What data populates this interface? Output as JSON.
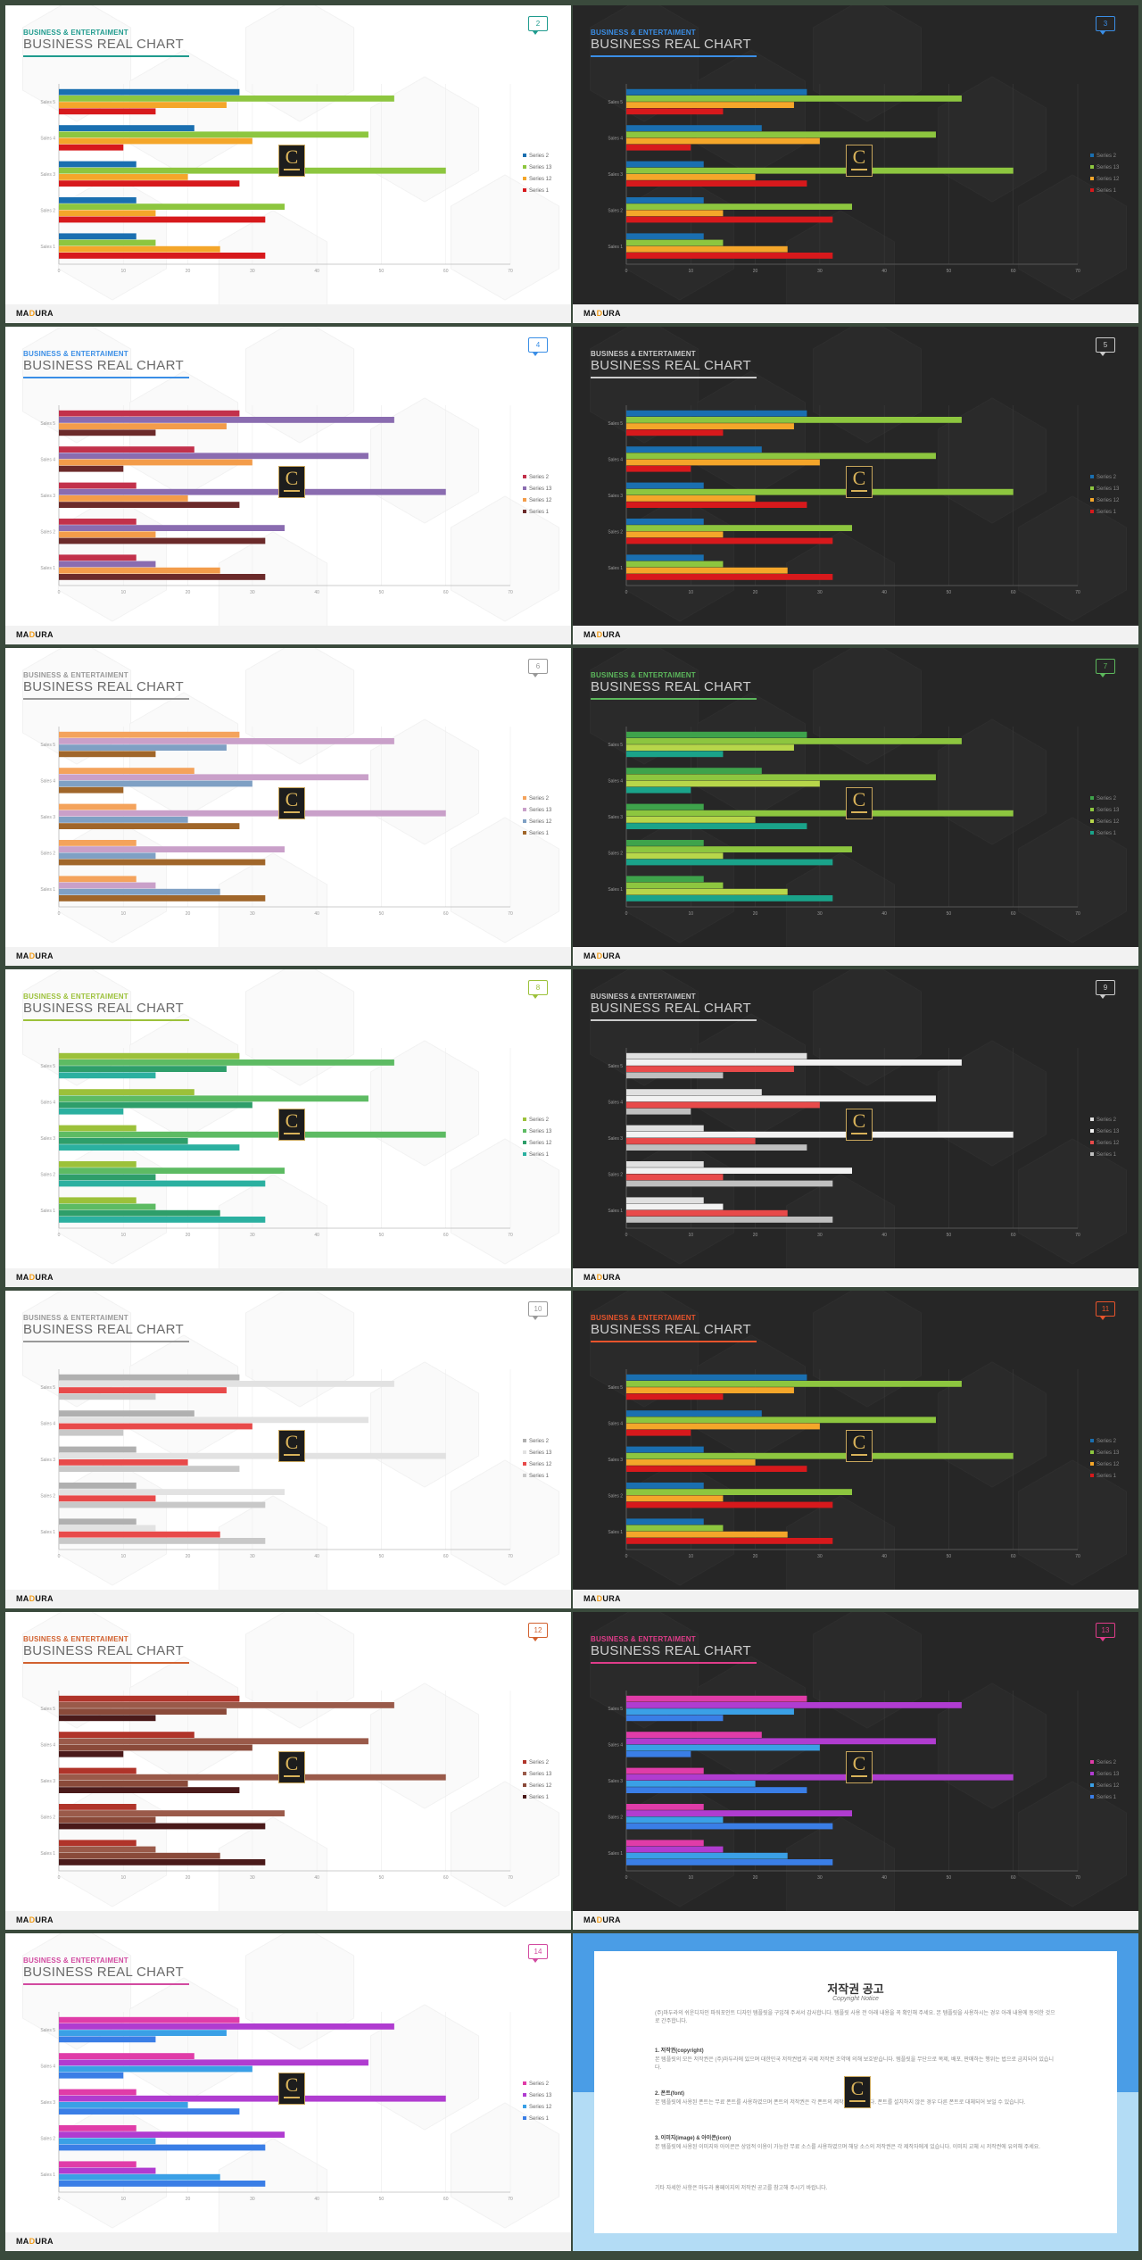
{
  "common": {
    "category": "BUSINESS & ENTERTAIMENT",
    "title": "BUSINESS REAL CHART",
    "logo_left": "MA",
    "logo_accent": "D",
    "logo_right": "URA",
    "emblem_letter": "C"
  },
  "chart_data": {
    "type": "bar",
    "orientation": "horizontal",
    "categories": [
      "Sales 1",
      "Sales 2",
      "Sales 3",
      "Sales 4",
      "Sales 5"
    ],
    "series": [
      {
        "name": "Series 1",
        "values": [
          32,
          32,
          28,
          10,
          15
        ]
      },
      {
        "name": "Series 12",
        "values": [
          25,
          15,
          20,
          30,
          26
        ]
      },
      {
        "name": "Series 13",
        "values": [
          15,
          35,
          60,
          48,
          52
        ]
      },
      {
        "name": "Series 2",
        "values": [
          12,
          12,
          12,
          21,
          28
        ]
      }
    ],
    "legend": [
      "Series 2",
      "Series 13",
      "Series 12",
      "Series 1"
    ],
    "xlim": [
      0,
      70
    ],
    "xticks": [
      "0",
      "10",
      "20",
      "30",
      "40",
      "50",
      "60",
      "70"
    ],
    "legend_position": "right",
    "grid": true
  },
  "slides": [
    {
      "number": "2",
      "theme": "light",
      "accent": "#1f9b8e",
      "catColor": "#1f9b8e",
      "colors": [
        "#1a6fb0",
        "#8dc63f",
        "#f4a62a",
        "#d7191c"
      ]
    },
    {
      "number": "3",
      "theme": "dark",
      "accent": "#3a8ee6",
      "catColor": "#3a8ee6",
      "colors": [
        "#1a6fb0",
        "#8dc63f",
        "#f4a62a",
        "#d7191c"
      ]
    },
    {
      "number": "4",
      "theme": "light",
      "accent": "#3a8ee6",
      "catColor": "#3a8ee6",
      "colors": [
        "#c2314b",
        "#8a6cb0",
        "#f39c4a",
        "#6b2a2a"
      ]
    },
    {
      "number": "5",
      "theme": "dark",
      "accent": "#cccccc",
      "catColor": "#cccccc",
      "colors": [
        "#1a6fb0",
        "#8dc63f",
        "#f4a62a",
        "#d7191c"
      ]
    },
    {
      "number": "6",
      "theme": "light",
      "accent": "#999999",
      "catColor": "#999999",
      "colors": [
        "#f4a35c",
        "#c9a0c9",
        "#7fa0c4",
        "#a0662a"
      ]
    },
    {
      "number": "7",
      "theme": "dark",
      "accent": "#5cb85c",
      "catColor": "#5cb85c",
      "colors": [
        "#3ea34b",
        "#8dc63f",
        "#b7d64a",
        "#1aa38a"
      ]
    },
    {
      "number": "8",
      "theme": "light",
      "accent": "#9cc13a",
      "catColor": "#9cc13a",
      "colors": [
        "#9cc13a",
        "#5dbb63",
        "#2e9e6a",
        "#2bb0a0"
      ]
    },
    {
      "number": "9",
      "theme": "dark",
      "accent": "#cccccc",
      "catColor": "#cccccc",
      "colors": [
        "#e0e0e0",
        "#f2f2f2",
        "#e84a4a",
        "#bfbfbf"
      ]
    },
    {
      "number": "10",
      "theme": "light",
      "accent": "#999999",
      "catColor": "#999999",
      "colors": [
        "#b0b0b0",
        "#e2e2e2",
        "#e84a4a",
        "#c8c8c8"
      ]
    },
    {
      "number": "11",
      "theme": "dark",
      "accent": "#e8542c",
      "catColor": "#e8542c",
      "colors": [
        "#1a6fb0",
        "#8dc63f",
        "#f4a62a",
        "#d7191c"
      ]
    },
    {
      "number": "12",
      "theme": "light",
      "accent": "#d2612f",
      "catColor": "#d2612f",
      "colors": [
        "#b0342a",
        "#9a5a4a",
        "#8a4a3a",
        "#4a1a1a"
      ]
    },
    {
      "number": "13",
      "theme": "dark",
      "accent": "#e03c8a",
      "catColor": "#e03c8a",
      "colors": [
        "#e03ca8",
        "#b03cd0",
        "#3aa0e6",
        "#3a7ee6"
      ]
    },
    {
      "number": "14",
      "theme": "light",
      "accent": "#d24aa0",
      "catColor": "#d24aa0",
      "colors": [
        "#e03ca8",
        "#b03cd0",
        "#3aa0e6",
        "#3a7ee6"
      ]
    }
  ],
  "notice": {
    "title": "저작권 공고",
    "subtitle": "Copyright Notice",
    "paragraphs": [
      {
        "bold": false,
        "text": "(주)마두라의 쉬운디자인 파워포인트 디자인 템플릿을 구입해 주셔서 감사합니다. 템플릿 사용 전 아래 내용을 꼭 확인해 주세요. 본 템플릿을 사용하시는 경우 아래 내용에 동의한 것으로 간주합니다."
      },
      {
        "bold": true,
        "text": "1. 저작권(copyright)"
      },
      {
        "bold": false,
        "text": "본 템플릿의 모든 저작권은 (주)마두라에 있으며 대한민국 저작권법과 국제 저작권 조약에 의해 보호받습니다. 템플릿을 무단으로 복제, 배포, 판매하는 행위는 법으로 금지되어 있습니다."
      },
      {
        "bold": true,
        "text": "2. 폰트(font)"
      },
      {
        "bold": false,
        "text": "본 템플릿에 사용된 폰트는 무료 폰트를 사용하였으며 폰트의 저작권은 각 폰트의 제작사에 있습니다. 폰트를 설치하지 않은 경우 다른 폰트로 대체되어 보일 수 있습니다."
      },
      {
        "bold": true,
        "text": "3. 이미지(image) & 아이콘(icon)"
      },
      {
        "bold": false,
        "text": "본 템플릿에 사용된 이미지와 아이콘은 상업적 이용이 가능한 무료 소스를 사용하였으며 해당 소스의 저작권은 각 제작자에게 있습니다. 이미지 교체 시 저작권에 유의해 주세요."
      },
      {
        "bold": false,
        "text": "기타 자세한 사항은 마두라 홈페이지의 저작권 공고를 참고해 주시기 바랍니다."
      }
    ]
  }
}
